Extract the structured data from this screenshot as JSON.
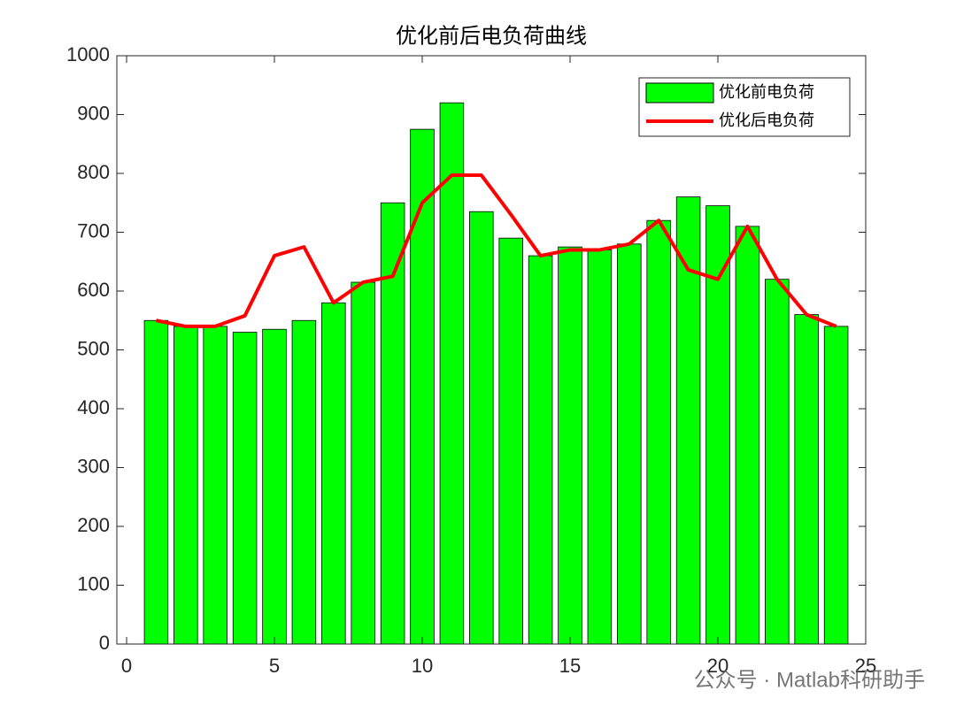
{
  "chart_data": {
    "type": "bar",
    "title": "优化前后电负荷曲线",
    "x": [
      1,
      2,
      3,
      4,
      5,
      6,
      7,
      8,
      9,
      10,
      11,
      12,
      13,
      14,
      15,
      16,
      17,
      18,
      19,
      20,
      21,
      22,
      23,
      24
    ],
    "series": [
      {
        "name": "优化前电负荷",
        "type": "bar",
        "color": "#00ff00",
        "values": [
          550,
          540,
          540,
          530,
          535,
          550,
          580,
          615,
          750,
          875,
          920,
          735,
          690,
          660,
          675,
          670,
          680,
          720,
          760,
          745,
          710,
          620,
          560,
          540
        ]
      },
      {
        "name": "优化后电负荷",
        "type": "line",
        "color": "#ff0000",
        "values": [
          550,
          540,
          540,
          558,
          660,
          675,
          580,
          615,
          625,
          750,
          797,
          797,
          730,
          660,
          670,
          670,
          680,
          720,
          636,
          620,
          710,
          620,
          560,
          540
        ]
      }
    ],
    "xlim": [
      -0.33,
      25
    ],
    "xticks": [
      0,
      5,
      10,
      15,
      20,
      25
    ],
    "ylim": [
      0,
      1000
    ],
    "yticks": [
      0,
      100,
      200,
      300,
      400,
      500,
      600,
      700,
      800,
      900,
      1000
    ],
    "grid": false,
    "legend": "top-right",
    "watermark": "公众号 · Matlab科研助手"
  }
}
